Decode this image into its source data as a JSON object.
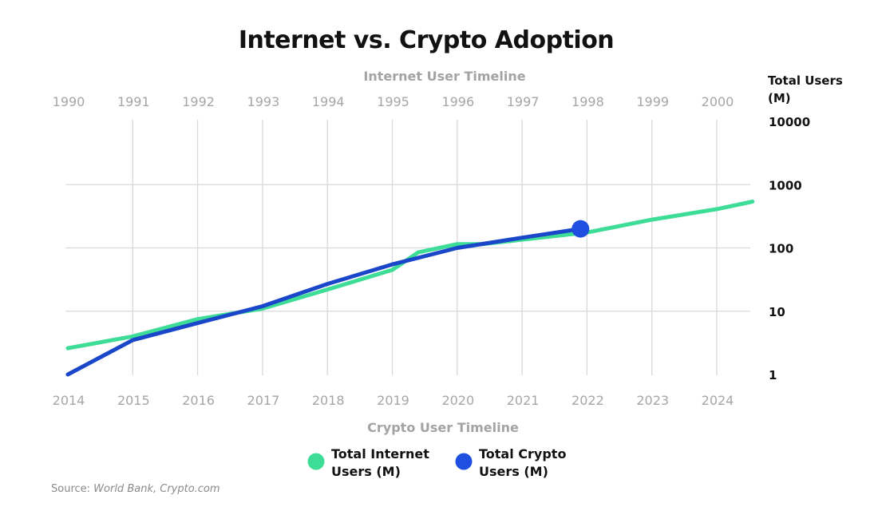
{
  "chart_data": {
    "type": "line",
    "title": "Internet vs. Crypto Adoption",
    "top_axis": {
      "label": "Internet User Timeline",
      "ticks": [
        "1990",
        "1991",
        "1992",
        "1993",
        "1994",
        "1995",
        "1996",
        "1997",
        "1998",
        "1999",
        "2000"
      ]
    },
    "bottom_axis": {
      "label": "Crypto User Timeline",
      "ticks": [
        "2014",
        "2015",
        "2016",
        "2017",
        "2018",
        "2019",
        "2020",
        "2021",
        "2022",
        "2023",
        "2024"
      ]
    },
    "y_axis": {
      "title_line1": "Total Users",
      "title_line2": "(M)",
      "scale": "log",
      "ticks": [
        "1",
        "10",
        "100",
        "1000",
        "10000"
      ],
      "ylim": [
        1,
        10000
      ]
    },
    "grid": true,
    "series": [
      {
        "name": "Total Internet Users (M)",
        "color": "#3ddc97",
        "timeline": "top",
        "x": [
          1990,
          1991,
          1992,
          1993,
          1994,
          1995,
          1995.4,
          1996,
          1996.4,
          1997,
          1998,
          1999,
          2000,
          2000.55
        ],
        "y": [
          2.6,
          4,
          7.5,
          11,
          22,
          45,
          85,
          115,
          115,
          135,
          175,
          280,
          410,
          540
        ]
      },
      {
        "name": "Total Crypto Users (M)",
        "color": "#1a47c9",
        "timeline": "bottom",
        "x": [
          2014,
          2015,
          2016,
          2017,
          2018,
          2019,
          2020,
          2021,
          2021.9
        ],
        "y": [
          1,
          3.5,
          6.5,
          12,
          27,
          55,
          100,
          145,
          200
        ]
      }
    ],
    "marker": {
      "timeline": "bottom",
      "x": 2021.9,
      "y": 200,
      "color": "#1f4fe0"
    },
    "legend": {
      "placement": "bottom-center",
      "items": [
        {
          "line1": "Total Internet",
          "line2": "Users (M)",
          "color": "#3ddc97"
        },
        {
          "line1": "Total Crypto",
          "line2": "Users (M)",
          "color": "#1f4fe0"
        }
      ]
    },
    "source": {
      "prefix": "Source: ",
      "text": "World Bank, Crypto.com"
    }
  }
}
